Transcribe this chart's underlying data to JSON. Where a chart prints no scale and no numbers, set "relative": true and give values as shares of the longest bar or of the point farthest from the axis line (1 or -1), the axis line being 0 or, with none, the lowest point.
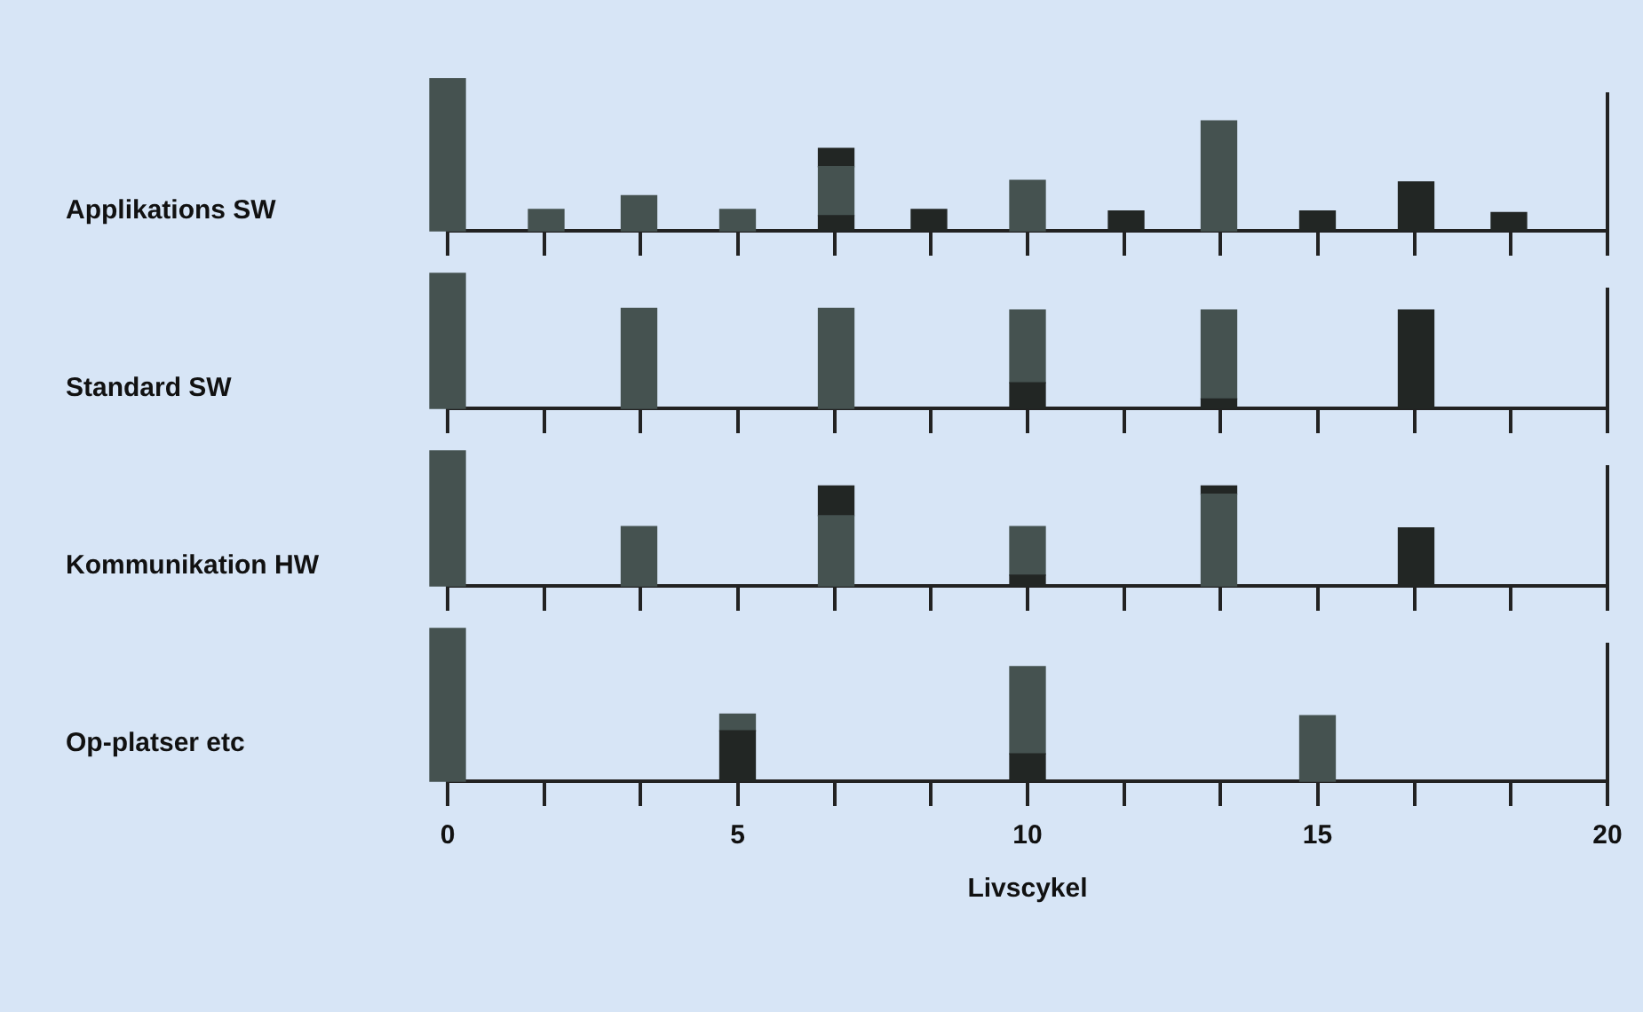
{
  "chart_data": [
    {
      "type": "bar",
      "ylabel": "Applikations SW",
      "stacked": true,
      "relative": true,
      "tick_labels": false,
      "xlim": [
        0,
        20
      ],
      "xticks": [
        0,
        {
          "value": 1.67,
          "label": null
        },
        {
          "value": 3.33,
          "label": null
        },
        5,
        {
          "value": 6.67,
          "label": null
        },
        {
          "value": 8.33,
          "label": null
        },
        10,
        {
          "value": 11.67,
          "label": null
        },
        {
          "value": 13.33,
          "label": null
        },
        15,
        {
          "value": 16.67,
          "label": null
        },
        {
          "value": 18.33,
          "label": null
        },
        20
      ],
      "x": [
        0,
        1.7,
        3.3,
        5,
        6.7,
        8.3,
        10,
        11.7,
        13.3,
        15,
        16.7,
        18.3
      ],
      "series": [
        {
          "color": "#222624",
          "values": [
            null,
            null,
            null,
            null,
            0.1,
            0.14,
            null,
            0.13,
            null,
            0.13,
            0.32,
            0.12
          ]
        },
        {
          "color": "#455250",
          "values": [
            1.0,
            0.14,
            0.23,
            0.14,
            0.32,
            null,
            0.33,
            null,
            0.72,
            null,
            null,
            null
          ]
        },
        {
          "color": "#222624",
          "values": [
            null,
            null,
            null,
            null,
            0.12,
            null,
            null,
            null,
            null,
            null,
            null,
            null
          ]
        }
      ]
    },
    {
      "type": "bar",
      "ylabel": "Standard SW",
      "stacked": true,
      "relative": true,
      "tick_labels": false,
      "xlim": [
        0,
        20
      ],
      "xticks": [
        0,
        {
          "value": 1.67,
          "label": null
        },
        {
          "value": 3.33,
          "label": null
        },
        5,
        {
          "value": 6.67,
          "label": null
        },
        {
          "value": 8.33,
          "label": null
        },
        10,
        {
          "value": 11.67,
          "label": null
        },
        {
          "value": 13.33,
          "label": null
        },
        15,
        {
          "value": 16.67,
          "label": null
        },
        {
          "value": 18.33,
          "label": null
        },
        20
      ],
      "x": [
        0,
        3.3,
        6.7,
        10,
        13.3,
        16.7
      ],
      "series": [
        {
          "color": "#222624",
          "values": [
            null,
            null,
            null,
            0.19,
            0.07,
            0.73
          ]
        },
        {
          "color": "#455250",
          "values": [
            1.0,
            0.74,
            0.74,
            0.54,
            0.66,
            null
          ]
        }
      ]
    },
    {
      "type": "bar",
      "ylabel": "Kommunikation HW",
      "stacked": true,
      "relative": true,
      "tick_labels": false,
      "xlim": [
        0,
        20
      ],
      "xticks": [
        0,
        {
          "value": 1.67,
          "label": null
        },
        {
          "value": 3.33,
          "label": null
        },
        5,
        {
          "value": 6.67,
          "label": null
        },
        {
          "value": 8.33,
          "label": null
        },
        10,
        {
          "value": 11.67,
          "label": null
        },
        {
          "value": 13.33,
          "label": null
        },
        15,
        {
          "value": 16.67,
          "label": null
        },
        {
          "value": 18.33,
          "label": null
        },
        20
      ],
      "x": [
        0,
        3.3,
        6.7,
        10,
        13.3,
        16.7
      ],
      "series": [
        {
          "color": "#222624",
          "values": [
            null,
            null,
            null,
            0.08,
            null,
            0.43
          ]
        },
        {
          "color": "#455250",
          "values": [
            1.0,
            0.44,
            0.52,
            0.36,
            0.68,
            null
          ]
        },
        {
          "color": "#222624",
          "values": [
            null,
            null,
            0.22,
            null,
            0.06,
            null
          ]
        }
      ]
    },
    {
      "type": "bar",
      "ylabel": "Op-platser etc",
      "xlabel": "Livscykel",
      "stacked": true,
      "relative": true,
      "tick_labels": "x",
      "xlim": [
        0,
        20
      ],
      "xticks": [
        0,
        {
          "value": 1.67,
          "label": null
        },
        {
          "value": 3.33,
          "label": null
        },
        5,
        {
          "value": 6.67,
          "label": null
        },
        {
          "value": 8.33,
          "label": null
        },
        10,
        {
          "value": 11.67,
          "label": null
        },
        {
          "value": 13.33,
          "label": null
        },
        15,
        {
          "value": 16.67,
          "label": null
        },
        {
          "value": 18.33,
          "label": null
        },
        20
      ],
      "x": [
        0,
        5,
        10,
        15
      ],
      "series": [
        {
          "color": "#222624",
          "values": [
            null,
            0.33,
            0.18,
            null
          ]
        },
        {
          "color": "#455250",
          "values": [
            1.0,
            0.11,
            0.57,
            0.43
          ]
        }
      ]
    }
  ]
}
